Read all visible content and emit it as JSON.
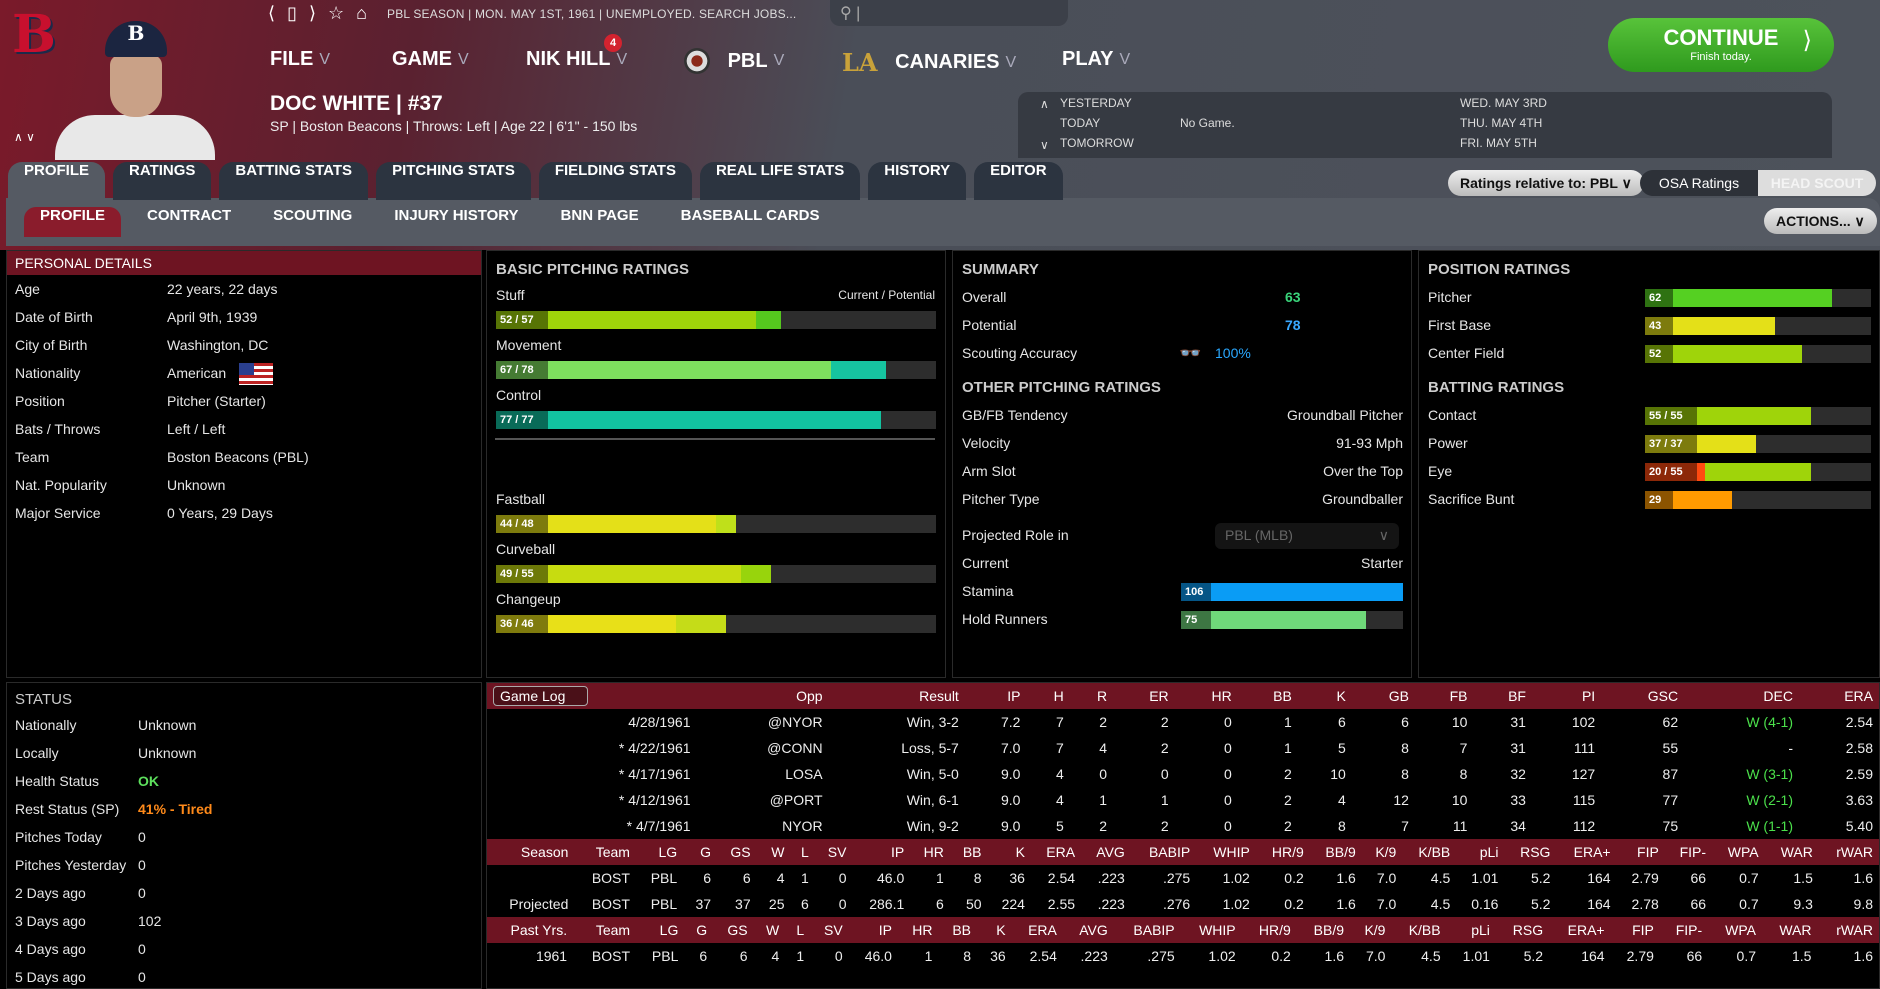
{
  "topbar": {
    "season_text": "PBL SEASON | MON. MAY 1ST, 1961 | UNEMPLOYED. SEARCH JOBS...",
    "search_placeholder": "|"
  },
  "menu": {
    "file": "FILE",
    "game": "GAME",
    "user": "NIK HILL",
    "user_badge": "4",
    "league": "PBL",
    "team": "CANARIES",
    "play": "PLAY"
  },
  "player": {
    "name": "DOC WHITE | #37",
    "info": "SP | Boston Beacons | Throws: Left | Age 22 | 6'1\" - 150 lbs",
    "logo_letter": "B"
  },
  "continue": {
    "label": "CONTINUE",
    "sub": "Finish today."
  },
  "schedule": {
    "yesterday": "YESTERDAY",
    "today": "TODAY",
    "tomorrow": "TOMORROW",
    "today_game": "No Game.",
    "d1": "WED. MAY 3RD",
    "d2": "THU. MAY 4TH",
    "d3": "FRI. MAY 5TH"
  },
  "tabs": [
    "PROFILE",
    "RATINGS",
    "BATTING STATS",
    "PITCHING STATS",
    "FIELDING STATS",
    "REAL LIFE STATS",
    "HISTORY",
    "EDITOR"
  ],
  "subtabs": [
    "PROFILE",
    "CONTRACT",
    "SCOUTING",
    "INJURY HISTORY",
    "BNN PAGE",
    "BASEBALL CARDS"
  ],
  "controls": {
    "ratings_relative": "Ratings relative to: PBL",
    "osa": "OSA Ratings",
    "head_scout": "HEAD SCOUT",
    "actions": "ACTIONS..."
  },
  "personal": {
    "title": "PERSONAL DETAILS",
    "rows": [
      [
        "Age",
        "22 years, 22 days"
      ],
      [
        "Date of Birth",
        "April 9th, 1939"
      ],
      [
        "City of Birth",
        "Washington, DC"
      ],
      [
        "Nationality",
        "American"
      ],
      [
        "Position",
        "Pitcher (Starter)"
      ],
      [
        "Bats / Throws",
        "Left / Left"
      ],
      [
        "Team",
        "Boston Beacons (PBL)"
      ],
      [
        "Nat. Popularity",
        "Unknown"
      ],
      [
        "Major Service",
        "0 Years, 29 Days"
      ]
    ]
  },
  "status": {
    "title": "STATUS",
    "rows": [
      [
        "Nationally",
        "Unknown",
        ""
      ],
      [
        "Locally",
        "Unknown",
        ""
      ],
      [
        "Health Status",
        "OK",
        "#5de05d"
      ],
      [
        "Rest Status (SP)",
        "41% - Tired",
        "#ff8a1a"
      ],
      [
        "Pitches Today",
        "0",
        ""
      ],
      [
        "Pitches Yesterday",
        "0",
        ""
      ],
      [
        "2 Days ago",
        "0",
        ""
      ],
      [
        "3 Days ago",
        "102",
        ""
      ],
      [
        "4 Days ago",
        "0",
        ""
      ],
      [
        "5 Days ago",
        "0",
        ""
      ]
    ]
  },
  "basic": {
    "title": "BASIC PITCHING RATINGS",
    "legend": "Current / Potential",
    "rows": [
      {
        "name": "Stuff",
        "cur": 52,
        "pot": 57,
        "c": "#9fd40a",
        "p": "#55c81e"
      },
      {
        "name": "Movement",
        "cur": 67,
        "pot": 78,
        "c": "#7ee05e",
        "p": "#16c4a0"
      },
      {
        "name": "Control",
        "cur": 77,
        "pot": 77,
        "c": "#12c4a0",
        "p": "#12c4a0"
      },
      {
        "name": "Fastball",
        "cur": 44,
        "pot": 48,
        "c": "#e4e018",
        "p": "#bfe01a"
      },
      {
        "name": "Curveball",
        "cur": 49,
        "pot": 55,
        "c": "#c7dc10",
        "p": "#98d40c"
      },
      {
        "name": "Changeup",
        "cur": 36,
        "pot": 46,
        "c": "#e8e018",
        "p": "#c5dc18"
      }
    ]
  },
  "summary": {
    "title": "SUMMARY",
    "overall_label": "Overall",
    "overall": "63",
    "potential_label": "Potential",
    "potential": "78",
    "accuracy_label": "Scouting Accuracy",
    "accuracy": "100%",
    "other_title": "OTHER PITCHING RATINGS",
    "other": [
      [
        "GB/FB Tendency",
        "Groundball Pitcher"
      ],
      [
        "Velocity",
        "91-93 Mph"
      ],
      [
        "Arm Slot",
        "Over the Top"
      ],
      [
        "Pitcher Type",
        "Groundballer"
      ]
    ],
    "role_label": "Projected Role in",
    "role_select": "PBL (MLB)",
    "current_label": "Current",
    "current": "Starter",
    "stamina_label": "Stamina",
    "stamina": 106,
    "hold_label": "Hold Runners",
    "hold": 75
  },
  "position": {
    "title": "POSITION RATINGS",
    "rows": [
      {
        "name": "Pitcher",
        "label": "62",
        "cur": 62,
        "pot": 62,
        "c": "#55d022"
      },
      {
        "name": "First Base",
        "label": "43",
        "cur": 43,
        "pot": 43,
        "c": "#e4e018"
      },
      {
        "name": "Center Field",
        "label": "52",
        "cur": 52,
        "pot": 52,
        "c": "#9fd40a"
      }
    ],
    "batting_title": "BATTING RATINGS",
    "batting": [
      {
        "name": "Contact",
        "label": "55 / 55",
        "cur": 55,
        "pot": 55,
        "c": "#9fd40a"
      },
      {
        "name": "Power",
        "label": "37 / 37",
        "cur": 37,
        "pot": 37,
        "c": "#e4e018"
      },
      {
        "name": "Eye",
        "label": "20 / 55",
        "cur": 20,
        "pot": 55,
        "c": "#ff4a10",
        "p": "#9fd40a"
      },
      {
        "name": "Sacrifice Bunt",
        "label": "29",
        "cur": 29,
        "pot": 29,
        "c": "#ff9a00"
      }
    ]
  },
  "gamelog": {
    "select": "Game Log",
    "headers": [
      "Opp",
      "Result",
      "IP",
      "H",
      "R",
      "ER",
      "HR",
      "BB",
      "K",
      "GB",
      "FB",
      "BF",
      "PI",
      "GSC",
      "DEC",
      "ERA"
    ],
    "rows": [
      [
        "4/28/1961",
        "@NYOR",
        "Win, 3-2",
        "7.2",
        "7",
        "2",
        "2",
        "0",
        "1",
        "6",
        "6",
        "10",
        "31",
        "102",
        "62",
        "W (4-1)",
        "2.54"
      ],
      [
        "* 4/22/1961",
        "@CONN",
        "Loss, 5-7",
        "7.0",
        "7",
        "4",
        "2",
        "0",
        "1",
        "5",
        "8",
        "7",
        "31",
        "111",
        "55",
        "-",
        "2.58"
      ],
      [
        "* 4/17/1961",
        "LOSA",
        "Win, 5-0",
        "9.0",
        "4",
        "0",
        "0",
        "0",
        "2",
        "10",
        "8",
        "8",
        "32",
        "127",
        "87",
        "W (3-1)",
        "2.59"
      ],
      [
        "* 4/12/1961",
        "@PORT",
        "Win, 6-1",
        "9.0",
        "4",
        "1",
        "1",
        "0",
        "2",
        "4",
        "12",
        "10",
        "33",
        "115",
        "77",
        "W (2-1)",
        "3.63"
      ],
      [
        "* 4/7/1961",
        "NYOR",
        "Win, 9-2",
        "9.0",
        "5",
        "2",
        "2",
        "0",
        "2",
        "8",
        "7",
        "11",
        "34",
        "112",
        "75",
        "W (1-1)",
        "5.40"
      ]
    ]
  },
  "season": {
    "headers": [
      "Season",
      "Team",
      "LG",
      "G",
      "GS",
      "W",
      "L",
      "SV",
      "IP",
      "HR",
      "BB",
      "K",
      "ERA",
      "AVG",
      "BABIP",
      "WHIP",
      "HR/9",
      "BB/9",
      "K/9",
      "K/BB",
      "pLi",
      "RSG",
      "ERA+",
      "FIP",
      "FIP-",
      "WPA",
      "WAR",
      "rWAR"
    ],
    "rows": [
      [
        "",
        "BOST",
        "PBL",
        "6",
        "6",
        "4",
        "1",
        "0",
        "46.0",
        "1",
        "8",
        "36",
        "2.54",
        ".223",
        ".275",
        "1.02",
        "0.2",
        "1.6",
        "7.0",
        "4.5",
        "1.01",
        "5.2",
        "164",
        "2.79",
        "66",
        "0.7",
        "1.5",
        "1.6"
      ],
      [
        "Projected",
        "BOST",
        "PBL",
        "37",
        "37",
        "25",
        "6",
        "0",
        "286.1",
        "6",
        "50",
        "224",
        "2.55",
        ".223",
        ".276",
        "1.02",
        "0.2",
        "1.6",
        "7.0",
        "4.5",
        "0.16",
        "5.2",
        "164",
        "2.78",
        "66",
        "0.7",
        "9.3",
        "9.8"
      ]
    ]
  },
  "past": {
    "headers": [
      "Past Yrs.",
      "Team",
      "LG",
      "G",
      "GS",
      "W",
      "L",
      "SV",
      "IP",
      "HR",
      "BB",
      "K",
      "ERA",
      "AVG",
      "BABIP",
      "WHIP",
      "HR/9",
      "BB/9",
      "K/9",
      "K/BB",
      "pLi",
      "RSG",
      "ERA+",
      "FIP",
      "FIP-",
      "WPA",
      "WAR",
      "rWAR"
    ],
    "rows": [
      [
        "1961",
        "BOST",
        "PBL",
        "6",
        "6",
        "4",
        "1",
        "0",
        "46.0",
        "1",
        "8",
        "36",
        "2.54",
        ".223",
        ".275",
        "1.02",
        "0.2",
        "1.6",
        "7.0",
        "4.5",
        "1.01",
        "5.2",
        "164",
        "2.79",
        "66",
        "0.7",
        "1.5",
        "1.6"
      ]
    ]
  }
}
